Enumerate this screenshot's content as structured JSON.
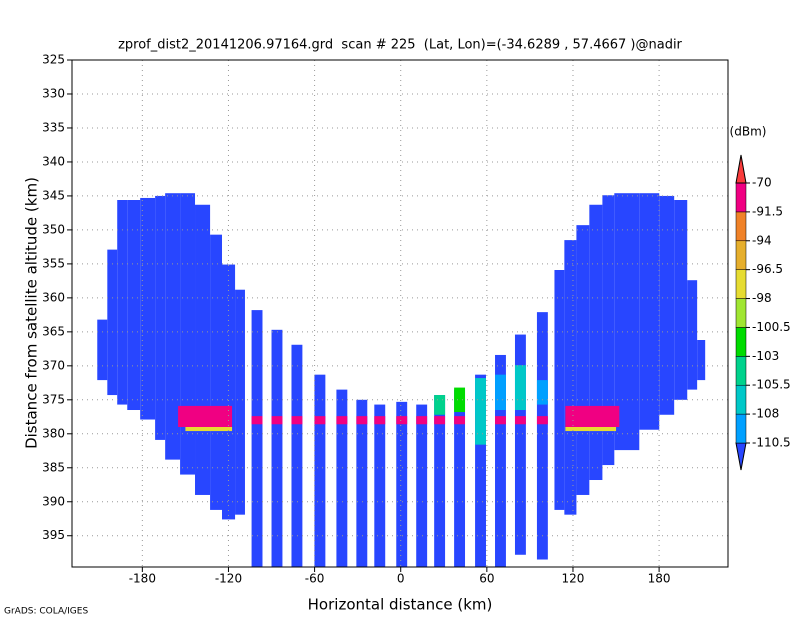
{
  "chart_data": {
    "type": "profile",
    "title": "zprof_dist2_20141206.97164.grd  scan # 225  (Lat, Lon)=(-34.6289 , 57.4667 )@nadir",
    "xlabel": "Horizontal distance (km)",
    "ylabel": "Distance from satellite altitude (km)",
    "footer": "GrADS: COLA/IGES",
    "xlim": [
      -229,
      228
    ],
    "ylim": [
      399.6,
      325
    ],
    "xticks": [
      -180,
      -120,
      -60,
      0,
      60,
      120,
      180
    ],
    "yticks": [
      325,
      330,
      335,
      340,
      345,
      350,
      355,
      360,
      365,
      370,
      375,
      380,
      385,
      390,
      395
    ],
    "grid": true,
    "colorbar": {
      "label": "(dBm)",
      "levels": [
        -110.5,
        -108,
        -105.5,
        -103,
        -100.5,
        -98,
        -96.5,
        -94,
        -91.5,
        -70
      ],
      "colors": [
        "#2846ff",
        "#00a0ff",
        "#00c8c8",
        "#00d28c",
        "#00dc00",
        "#a0e632",
        "#e6dc32",
        "#e6af2d",
        "#f08228",
        "#f00082",
        "#fa3c3c"
      ]
    },
    "cells": {
      "x0": [
        -211.4,
        -204.4,
        -197.5,
        -190.5,
        -181.5,
        -171.1,
        -164.1,
        -153.7,
        -143.3,
        -132.8,
        -124.5,
        -115.4,
        -103.9,
        -90.0,
        -76.1,
        -60.1,
        -44.8,
        -30.9,
        -18.4,
        -3.1,
        10.8,
        23.3,
        37.2,
        51.8,
        65.7,
        79.6,
        94.9,
        107.1,
        114.0,
        122.4,
        131.4,
        140.5,
        148.8,
        166.2,
        180.1,
        190.5,
        199.6,
        206.5,
        -155.1,
        -150,
        114.7,
        114.7,
        -103.9,
        -90.0,
        -76.1,
        -60.1,
        -44.8,
        -30.9,
        -18.4,
        -3.1,
        10.8,
        23.3,
        37.2,
        51.8,
        65.7,
        79.6,
        94.9,
        23.3,
        37.2,
        51.8,
        65.7,
        79.6,
        94.9
      ],
      "x1": [
        -204.4,
        -197.5,
        -190.5,
        -181.5,
        -171.1,
        -164.1,
        -153.7,
        -143.3,
        -132.8,
        -124.5,
        -115.4,
        -108.5,
        -96.3,
        -82.4,
        -68.5,
        -52.5,
        -37.2,
        -23.3,
        -10.8,
        4.5,
        18.4,
        30.9,
        44.8,
        59.4,
        73.3,
        87.2,
        102.5,
        114.0,
        122.4,
        131.4,
        140.5,
        148.8,
        166.2,
        180.1,
        190.5,
        199.6,
        206.5,
        212.1,
        -117.5,
        -117.5,
        152.3,
        150,
        -96.3,
        -82.4,
        -68.5,
        -52.5,
        -37.2,
        -23.3,
        -10.8,
        4.5,
        18.4,
        30.9,
        44.8,
        59.4,
        73.3,
        87.2,
        102.5,
        30.9,
        44.8,
        59.4,
        73.3,
        87.2,
        102.5
      ],
      "top": [
        363.2,
        352.9,
        345.6,
        345.6,
        345.3,
        345.0,
        344.6,
        344.6,
        346.3,
        350.7,
        355.1,
        358.8,
        361.8,
        364.7,
        366.9,
        371.3,
        373.5,
        375.0,
        375.7,
        375.3,
        375.7,
        374.3,
        373.5,
        371.3,
        368.4,
        365.4,
        362.1,
        355.9,
        351.5,
        349.3,
        346.3,
        344.9,
        344.6,
        344.6,
        345.0,
        345.6,
        357.4,
        366.2,
        375.9,
        379.0,
        375.9,
        379.0,
        377.4,
        377.4,
        377.4,
        377.4,
        377.4,
        377.4,
        377.4,
        377.4,
        377.4,
        377.4,
        377.4,
        377.4,
        377.4,
        377.4,
        377.4,
        374.3,
        373.2,
        371.8,
        371.3,
        369.9,
        372.1
      ],
      "bottom": [
        372.1,
        374.3,
        375.7,
        376.5,
        377.9,
        380.9,
        383.8,
        386.0,
        389.0,
        391.2,
        392.6,
        391.9,
        399.6,
        399.6,
        399.6,
        399.6,
        399.6,
        399.6,
        399.6,
        399.6,
        399.6,
        399.6,
        399.6,
        399.6,
        399.6,
        397.8,
        398.5,
        391.2,
        391.9,
        389.0,
        386.8,
        384.6,
        382.4,
        379.4,
        377.2,
        375.0,
        373.5,
        372.1,
        379.0,
        379.6,
        379.0,
        379.6,
        378.6,
        378.6,
        378.6,
        378.6,
        378.6,
        378.6,
        378.6,
        378.6,
        378.6,
        378.6,
        378.6,
        378.6,
        378.6,
        378.6,
        378.6,
        377.2,
        376.8,
        381.6,
        376.5,
        376.5,
        375.7
      ],
      "values": [
        -115,
        -115,
        -115,
        -115,
        -115,
        -115,
        -115,
        -115,
        -115,
        -115,
        -115,
        -115,
        -115,
        -115,
        -115,
        -115,
        -115,
        -115,
        -115,
        -115,
        -115,
        -115,
        -115,
        -115,
        -115,
        -115,
        -115,
        -115,
        -115,
        -115,
        -115,
        -115,
        -115,
        -115,
        -115,
        -115,
        -115,
        -115,
        -85,
        -97,
        -85,
        -97,
        -90,
        -90,
        -90,
        -90,
        -90,
        -90,
        -90,
        -90,
        -90,
        -90,
        -90,
        -90,
        -90,
        -90,
        -90,
        -104,
        -101,
        -107,
        -109,
        -107,
        -109
      ]
    }
  }
}
